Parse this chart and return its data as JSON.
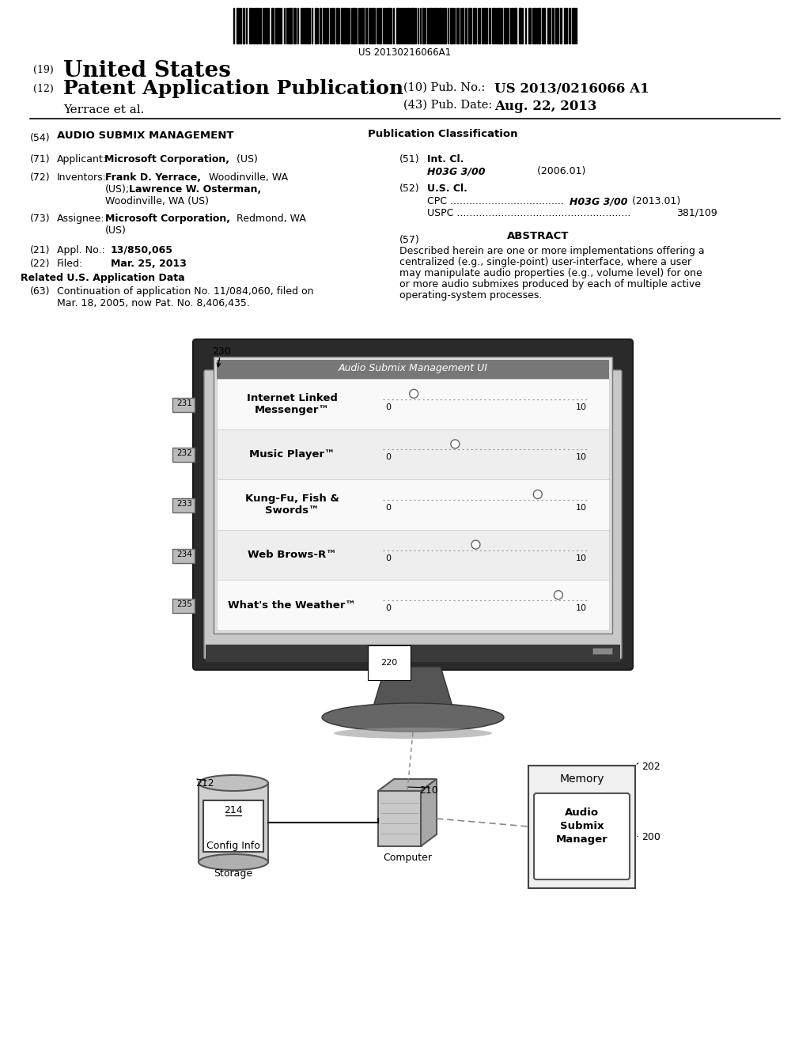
{
  "title": "AUDIO SUBMIX MANAGEMENT",
  "patent_number": "US 2013/0216066 A1",
  "pub_date": "Aug. 22, 2013",
  "applicant_label": "Microsoft Corporation,",
  "applicant_suffix": " (US)",
  "inventor1_bold": "Frank D. Yerrace,",
  "inventor1_rest": " Woodinville, WA",
  "inventor2_prefix": "(US); ",
  "inventor2_bold": "Lawrence W. Osterman,",
  "inventor3": "Woodinville, WA (US)",
  "assignee_bold": "Microsoft Corporation,",
  "assignee_rest": " Redmond, WA",
  "assignee_line2": "(US)",
  "appl_no": "13/850,065",
  "filed": "Mar. 25, 2013",
  "continuation": "Continuation of application No. 11/084,060, filed on",
  "continuation2": "Mar. 18, 2005, now Pat. No. 8,406,435.",
  "int_cl": "H03G 3/00",
  "int_cl_date": "(2006.01)",
  "us_cl_cpc_dots": "CPC ....................................",
  "us_cl_cpc_val": " H03G 3/00",
  "us_cl_cpc_date": " (2013.01)",
  "us_cl_uspc_dots": "USPC .......................................................",
  "us_cl_uspc_val": " 381/109",
  "abstract": "Described herein are one or more implementations offering a centralized (e.g., single-point) user-interface, where a user may manipulate audio properties (e.g., volume level) for one or more audio submixes produced by each of multiple active operating-system processes.",
  "barcode_text": "US 20130216066A1",
  "bg_color": "#ffffff",
  "text_color": "#000000",
  "rows": [
    {
      "label": "Internet Linked\nMessenger™",
      "slider": 1.5,
      "num": "231"
    },
    {
      "label": "Music Player™",
      "slider": 3.5,
      "num": "232"
    },
    {
      "label": "Kung-Fu, Fish &\nSwords™",
      "slider": 7.5,
      "num": "233"
    },
    {
      "label": "Web Brows-R™",
      "slider": 4.5,
      "num": "234"
    },
    {
      "label": "What's the Weather™",
      "slider": 8.5,
      "num": "235"
    }
  ]
}
